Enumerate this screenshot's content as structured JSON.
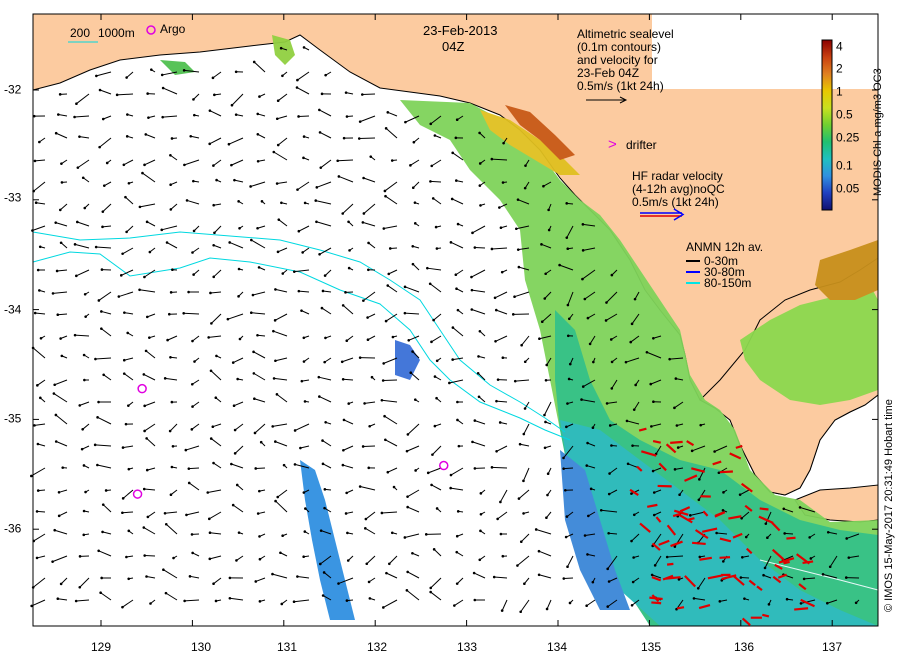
{
  "date": "23-Feb-2013",
  "time": "04Z",
  "scale_legend": {
    "contour_a": "200",
    "contour_b": "1000m",
    "argo_label": "Argo"
  },
  "altimetry": {
    "lines": [
      "Altimetric sealevel",
      "(0.1m contours)",
      "and velocity for",
      "23-Feb 04Z",
      "0.5m/s (1kt 24h)"
    ]
  },
  "drifter": {
    "symbol": ">",
    "label": "drifter"
  },
  "hf_radar": {
    "lines": [
      "HF radar velocity",
      "(4-12h avg)noQC",
      "0.5m/s (1kt 24h)"
    ]
  },
  "anmn": {
    "title": "ANMN 12h av.",
    "items": [
      {
        "label": "0-30m",
        "color": "#000000"
      },
      {
        "label": "30-80m",
        "color": "#0000ff"
      },
      {
        "label": "80-150m",
        "color": "#00e5e5"
      }
    ]
  },
  "colorbar": {
    "title": "MODIS Chl-a mg/m3 OC3",
    "ticks": [
      "4",
      "2",
      "1",
      "0.5",
      "0.25",
      "0.1",
      "0.05"
    ],
    "stops": [
      "#8b0000",
      "#c84010",
      "#e08020",
      "#e8c800",
      "#c8e020",
      "#70d030",
      "#20c070",
      "#20c0c0",
      "#3090e0",
      "#2040c0",
      "#101070"
    ]
  },
  "credit": "© IMOS 15-May-2017 20:31:49 Hobart time",
  "x_ticks": [
    "129",
    "130",
    "131",
    "132",
    "133",
    "134",
    "135",
    "136",
    "137"
  ],
  "y_ticks": [
    "-32",
    "-33",
    "-34",
    "-35",
    "-36"
  ],
  "colors": {
    "land": "#fccba0",
    "argo": "#e000e0",
    "hf_vector": "#e00000",
    "isobath": "#00d8e0"
  },
  "argo_floats": [
    {
      "lon": 129.55,
      "lat": -31.35
    },
    {
      "lon": 129.45,
      "lat": -34.72
    },
    {
      "lon": 129.4,
      "lat": -35.68
    },
    {
      "lon": 132.75,
      "lat": -35.42
    }
  ]
}
